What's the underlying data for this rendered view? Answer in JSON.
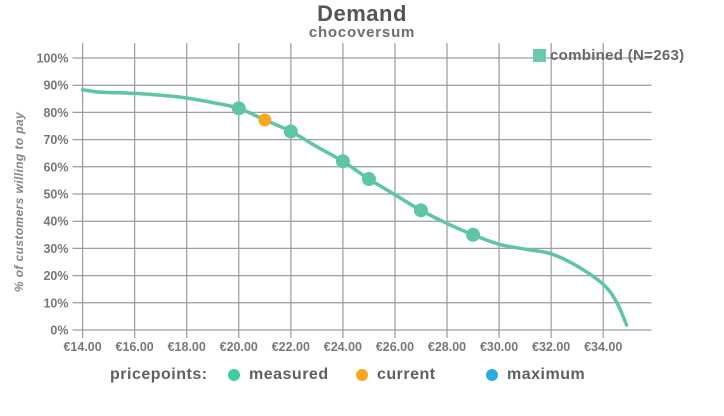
{
  "title": "Demand",
  "subtitle": "chocoversum",
  "legend": {
    "combined_label": "combined (N=263)"
  },
  "pricepoints_legend": {
    "label": "pricepoints:",
    "items": [
      {
        "name": "measured",
        "color": "#3dcf9e"
      },
      {
        "name": "current",
        "color": "#faa820"
      },
      {
        "name": "maximum",
        "color": "#29ace2"
      }
    ]
  },
  "colors": {
    "curve": "#5ec5a7",
    "legend_swatch": "#6cc9af",
    "measured_point": "#5ec5a7",
    "current_point": "#faa820",
    "grid": "#9e9e9e",
    "axis_text": "#77777e"
  },
  "chart_data": {
    "type": "line",
    "title": "Demand",
    "subtitle": "chocoversum",
    "xlabel": "",
    "ylabel": "% of customers willing to pay",
    "grid": true,
    "legend_position": "top-right",
    "xlim": [
      14,
      35.9
    ],
    "ylim": [
      0,
      100
    ],
    "x_tick_values": [
      14,
      16,
      18,
      20,
      22,
      24,
      26,
      28,
      30,
      32,
      34
    ],
    "x_tick_labels": [
      "€14.00",
      "€16.00",
      "€18.00",
      "€20.00",
      "€22.00",
      "€24.00",
      "€26.00",
      "€28.00",
      "€30.00",
      "€32.00",
      "€34.00"
    ],
    "y_tick_values": [
      0,
      10,
      20,
      30,
      40,
      50,
      60,
      70,
      80,
      90,
      100
    ],
    "y_tick_labels": [
      "0%",
      "10%",
      "20%",
      "30%",
      "40%",
      "50%",
      "60%",
      "70%",
      "80%",
      "90%",
      "100%"
    ],
    "series": [
      {
        "name": "combined (N=263)",
        "color": "#5ec5a7",
        "x": [
          14,
          14.5,
          15,
          16,
          17,
          18,
          19,
          20,
          21,
          22,
          23,
          24,
          25,
          26,
          27,
          28,
          29,
          30,
          31,
          32,
          33,
          34,
          34.5,
          34.9
        ],
        "y": [
          88.3,
          87.6,
          87.3,
          87,
          86.3,
          85.3,
          83.6,
          81.5,
          77.2,
          73,
          67.4,
          62,
          55.5,
          49.7,
          44,
          39.2,
          35,
          31.5,
          29.7,
          28,
          23.5,
          16.8,
          10.5,
          1.8
        ]
      }
    ],
    "pricepoints": {
      "measured": {
        "color": "#5ec5a7",
        "points": [
          [
            20,
            81.5
          ],
          [
            22,
            73
          ],
          [
            24,
            62
          ],
          [
            25,
            55.5
          ],
          [
            27,
            44
          ],
          [
            29,
            35
          ]
        ]
      },
      "current": {
        "color": "#faa820",
        "points": [
          [
            21,
            77.2
          ]
        ]
      },
      "maximum": {
        "color": "#29ace2",
        "points": []
      }
    }
  }
}
